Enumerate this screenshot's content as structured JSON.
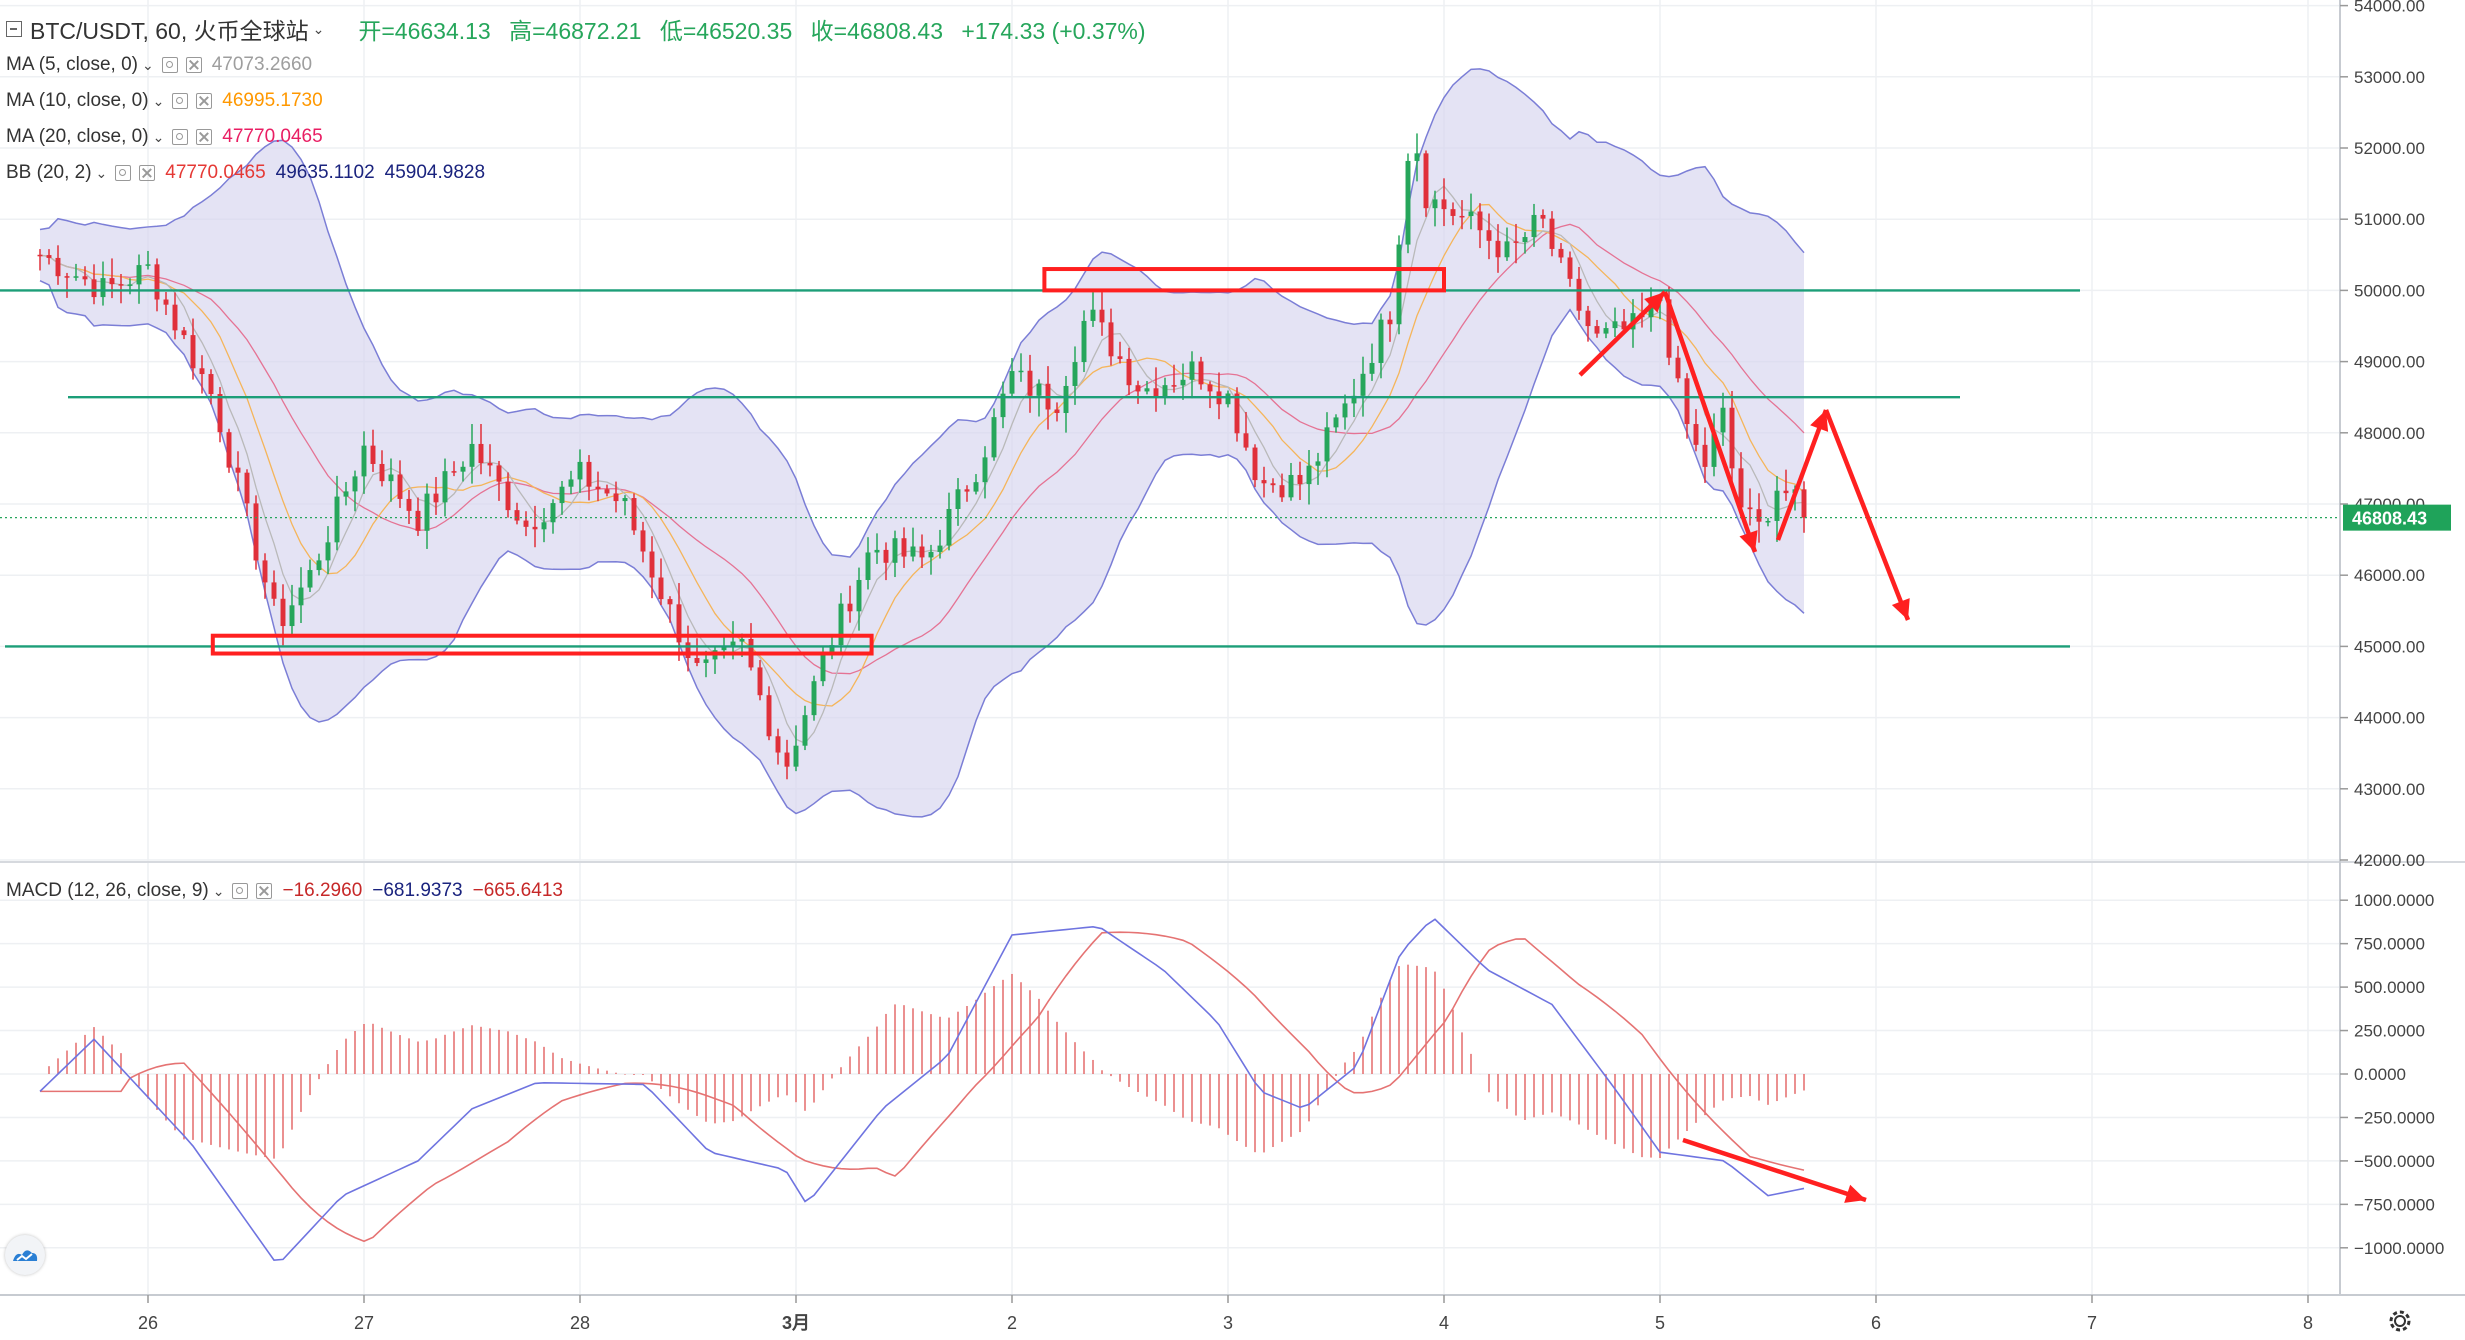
{
  "header": {
    "symbol": "BTC/USDT, 60, 火币全球站",
    "open_label": "开=46634.13",
    "high_label": "高=46872.21",
    "low_label": "低=46520.35",
    "close_label": "收=46808.43",
    "change_label": "+174.33 (+0.37%)"
  },
  "indicators": [
    {
      "name": "MA (5, close, 0)",
      "values": [
        "47073.2660"
      ],
      "colors": [
        "#9e9e9e"
      ]
    },
    {
      "name": "MA (10, close, 0)",
      "values": [
        "46995.1730"
      ],
      "colors": [
        "#ff9800"
      ]
    },
    {
      "name": "MA (20, close, 0)",
      "values": [
        "47770.0465"
      ],
      "colors": [
        "#e91e63"
      ]
    },
    {
      "name": "BB (20, 2)",
      "values": [
        "47770.0465",
        "49635.1102",
        "45904.9828"
      ],
      "colors": [
        "#e53935",
        "#1a237e",
        "#1a237e"
      ]
    }
  ],
  "macd_legend": {
    "name": "MACD (12, 26, close, 9)",
    "values": [
      "−16.2960",
      "−681.9373",
      "−665.6413"
    ],
    "colors": [
      "#c62828",
      "#1a237e",
      "#c62828"
    ]
  },
  "price_badge": "46808.43",
  "icons": [
    "minus-box-icon",
    "chevron-down-icon",
    "eye-icon",
    "close-icon",
    "logo-icon",
    "settings-gear-icon"
  ],
  "colors": {
    "up": "#26a65b",
    "down": "#e0303a",
    "bb_fill": "#d6d4ee",
    "bb_line": "#7b7ed6",
    "support": "#1c9e78",
    "macd_line": "#6f74e0",
    "signal_line": "#e57373",
    "annotation": "#ff2020"
  },
  "chart_data": {
    "type": "candlestick",
    "price_axis": {
      "min": 42000,
      "max": 54000,
      "ticks": [
        "42000.00",
        "43000.00",
        "44000.00",
        "45000.00",
        "46000.00",
        "47000.00",
        "48000.00",
        "49000.00",
        "50000.00",
        "51000.00",
        "52000.00",
        "53000.00",
        "54000.00"
      ]
    },
    "macd_axis": {
      "min": -1200,
      "max": 1100,
      "ticks": [
        "1000.0000",
        "750.0000",
        "500.0000",
        "250.0000",
        "0.0000",
        "−250.0000",
        "−500.0000",
        "−750.0000",
        "−1000.0000"
      ]
    },
    "x_axis": {
      "start_day": 25.5,
      "end_day": 33.4,
      "labels": [
        {
          "t": 26,
          "label": "26"
        },
        {
          "t": 27,
          "label": "27"
        },
        {
          "t": 28,
          "label": "28"
        },
        {
          "t": 29,
          "label": "3月"
        },
        {
          "t": 30,
          "label": "2"
        },
        {
          "t": 31,
          "label": "3"
        },
        {
          "t": 32,
          "label": "4"
        },
        {
          "t": 33,
          "label": "5"
        },
        {
          "t": 34,
          "label": "6"
        },
        {
          "t": 35,
          "label": "7"
        },
        {
          "t": 36,
          "label": "8"
        }
      ]
    },
    "price_keypoints": [
      [
        25.5,
        50500
      ],
      [
        25.8,
        50000
      ],
      [
        26.0,
        50300
      ],
      [
        26.3,
        48500
      ],
      [
        26.6,
        45300
      ],
      [
        26.75,
        46000
      ],
      [
        27.0,
        47800
      ],
      [
        27.25,
        46800
      ],
      [
        27.5,
        47800
      ],
      [
        27.75,
        46700
      ],
      [
        28.0,
        47400
      ],
      [
        28.2,
        47000
      ],
      [
        28.4,
        45600
      ],
      [
        28.55,
        44600
      ],
      [
        28.75,
        45000
      ],
      [
        28.95,
        43300
      ],
      [
        29.15,
        45000
      ],
      [
        29.35,
        46400
      ],
      [
        29.6,
        46200
      ],
      [
        29.85,
        47600
      ],
      [
        30.0,
        48800
      ],
      [
        30.2,
        48400
      ],
      [
        30.35,
        49700
      ],
      [
        30.6,
        48600
      ],
      [
        30.85,
        48900
      ],
      [
        31.0,
        48500
      ],
      [
        31.15,
        47300
      ],
      [
        31.35,
        47300
      ],
      [
        31.55,
        48400
      ],
      [
        31.75,
        49700
      ],
      [
        31.85,
        52400
      ],
      [
        31.92,
        51300
      ],
      [
        32.1,
        51000
      ],
      [
        32.3,
        50500
      ],
      [
        32.45,
        51000
      ],
      [
        32.55,
        50200
      ],
      [
        32.7,
        49300
      ],
      [
        32.9,
        49500
      ],
      [
        33.0,
        49900
      ],
      [
        33.1,
        48300
      ],
      [
        33.2,
        47500
      ],
      [
        33.3,
        48300
      ],
      [
        33.35,
        47100
      ],
      [
        33.45,
        46600
      ],
      [
        33.55,
        47300
      ],
      [
        33.7,
        46700
      ]
    ],
    "macd_keypoints": [
      [
        25.5,
        -100
      ],
      [
        25.75,
        200
      ],
      [
        26.2,
        -400
      ],
      [
        26.6,
        -1100
      ],
      [
        26.9,
        -700
      ],
      [
        27.25,
        -500
      ],
      [
        27.5,
        -200
      ],
      [
        27.8,
        -50
      ],
      [
        28.3,
        -60
      ],
      [
        28.6,
        -450
      ],
      [
        28.95,
        -550
      ],
      [
        29.05,
        -750
      ],
      [
        29.4,
        -200
      ],
      [
        29.7,
        100
      ],
      [
        30.0,
        800
      ],
      [
        30.4,
        850
      ],
      [
        30.7,
        600
      ],
      [
        30.95,
        300
      ],
      [
        31.15,
        -100
      ],
      [
        31.35,
        -200
      ],
      [
        31.6,
        50
      ],
      [
        31.8,
        700
      ],
      [
        31.95,
        900
      ],
      [
        32.2,
        600
      ],
      [
        32.5,
        400
      ],
      [
        32.8,
        -100
      ],
      [
        33.0,
        -450
      ],
      [
        33.3,
        -500
      ],
      [
        33.5,
        -700
      ],
      [
        33.7,
        -650
      ]
    ],
    "last_price": 46808.43
  },
  "annotations": {
    "support_lines": [
      50000,
      48500,
      45000
    ],
    "boxes": [
      [
        30.15,
        32.0,
        50000,
        50300
      ],
      [
        26.3,
        29.35,
        44900,
        45150
      ]
    ]
  }
}
